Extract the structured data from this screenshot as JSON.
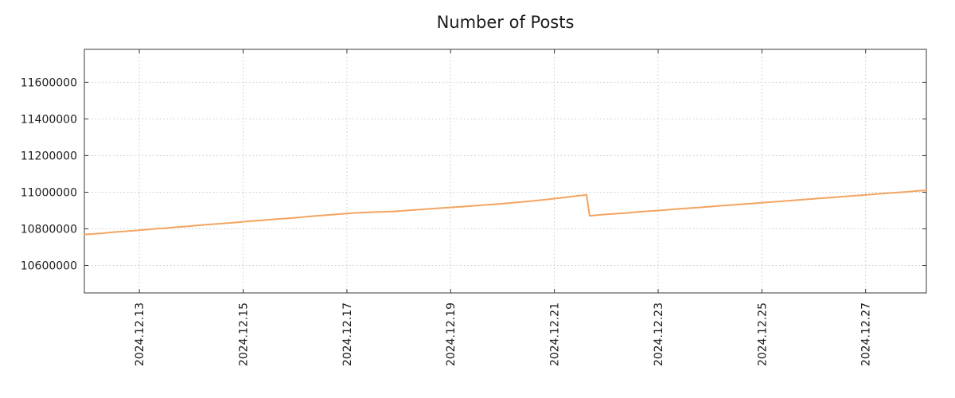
{
  "chart_data": {
    "type": "line",
    "title": "Number of Posts",
    "xlabel": "",
    "ylabel": "",
    "legend": "none",
    "grid": "dotted",
    "x_unit": "day of December 2024 (decimal)",
    "xlim": [
      11.94,
      28.17
    ],
    "ylim": [
      10450000,
      11780000
    ],
    "xticks": [
      {
        "value": 13,
        "label": "2024.12.13"
      },
      {
        "value": 15,
        "label": "2024.12.15"
      },
      {
        "value": 17,
        "label": "2024.12.17"
      },
      {
        "value": 19,
        "label": "2024.12.19"
      },
      {
        "value": 21,
        "label": "2024.12.21"
      },
      {
        "value": 23,
        "label": "2024.12.23"
      },
      {
        "value": 25,
        "label": "2024.12.25"
      },
      {
        "value": 27,
        "label": "2024.12.27"
      }
    ],
    "yticks": [
      {
        "value": 10600000,
        "label": "10600000"
      },
      {
        "value": 10800000,
        "label": "10800000"
      },
      {
        "value": 11000000,
        "label": "11000000"
      },
      {
        "value": 11200000,
        "label": "11200000"
      },
      {
        "value": 11400000,
        "label": "11400000"
      },
      {
        "value": 11600000,
        "label": "11600000"
      }
    ],
    "colors": {
      "line": "#f4a460",
      "grid": "#c8c8c8",
      "frame": "#3a3a3a",
      "text": "#1c1c1c",
      "background": "#ffffff"
    },
    "points": [
      [
        11.94,
        10769000
      ],
      [
        12.1,
        10772000
      ],
      [
        12.3,
        10776000
      ],
      [
        12.5,
        10782000
      ],
      [
        12.7,
        10786000
      ],
      [
        12.9,
        10790000
      ],
      [
        13.1,
        10795000
      ],
      [
        13.3,
        10800000
      ],
      [
        13.5,
        10804000
      ],
      [
        13.7,
        10809000
      ],
      [
        13.9,
        10813000
      ],
      [
        14.1,
        10818000
      ],
      [
        14.3,
        10823000
      ],
      [
        14.5,
        10827000
      ],
      [
        14.7,
        10831000
      ],
      [
        14.9,
        10836000
      ],
      [
        15.1,
        10841000
      ],
      [
        15.3,
        10845000
      ],
      [
        15.5,
        10850000
      ],
      [
        15.7,
        10854000
      ],
      [
        15.9,
        10858000
      ],
      [
        16.1,
        10863000
      ],
      [
        16.3,
        10868000
      ],
      [
        16.5,
        10873000
      ],
      [
        16.7,
        10877000
      ],
      [
        16.9,
        10881000
      ],
      [
        17.1,
        10886000
      ],
      [
        17.3,
        10889000
      ],
      [
        17.5,
        10891000
      ],
      [
        17.7,
        10893000
      ],
      [
        17.9,
        10895000
      ],
      [
        18.1,
        10899000
      ],
      [
        18.3,
        10903000
      ],
      [
        18.5,
        10907000
      ],
      [
        18.7,
        10911000
      ],
      [
        18.9,
        10915000
      ],
      [
        19.1,
        10919000
      ],
      [
        19.3,
        10923000
      ],
      [
        19.5,
        10927000
      ],
      [
        19.7,
        10931000
      ],
      [
        19.9,
        10935000
      ],
      [
        20.1,
        10940000
      ],
      [
        20.3,
        10945000
      ],
      [
        20.5,
        10950000
      ],
      [
        20.7,
        10956000
      ],
      [
        20.9,
        10962000
      ],
      [
        21.1,
        10968000
      ],
      [
        21.3,
        10975000
      ],
      [
        21.5,
        10982000
      ],
      [
        21.62,
        10986000
      ],
      [
        21.68,
        10871000
      ],
      [
        21.8,
        10874000
      ],
      [
        22.0,
        10879000
      ],
      [
        22.2,
        10883000
      ],
      [
        22.4,
        10887000
      ],
      [
        22.6,
        10892000
      ],
      [
        22.8,
        10896000
      ],
      [
        23.0,
        10900000
      ],
      [
        23.2,
        10904000
      ],
      [
        23.4,
        10909000
      ],
      [
        23.6,
        10913000
      ],
      [
        23.8,
        10917000
      ],
      [
        24.0,
        10921000
      ],
      [
        24.2,
        10926000
      ],
      [
        24.4,
        10930000
      ],
      [
        24.6,
        10934000
      ],
      [
        24.8,
        10938000
      ],
      [
        25.0,
        10943000
      ],
      [
        25.2,
        10947000
      ],
      [
        25.4,
        10951000
      ],
      [
        25.6,
        10955000
      ],
      [
        25.8,
        10960000
      ],
      [
        26.0,
        10964000
      ],
      [
        26.2,
        10968000
      ],
      [
        26.4,
        10972000
      ],
      [
        26.6,
        10977000
      ],
      [
        26.8,
        10981000
      ],
      [
        27.0,
        10985000
      ],
      [
        27.2,
        10990000
      ],
      [
        27.4,
        10994000
      ],
      [
        27.6,
        10998000
      ],
      [
        27.8,
        11002000
      ],
      [
        28.0,
        11007000
      ],
      [
        28.17,
        11010000
      ]
    ]
  }
}
